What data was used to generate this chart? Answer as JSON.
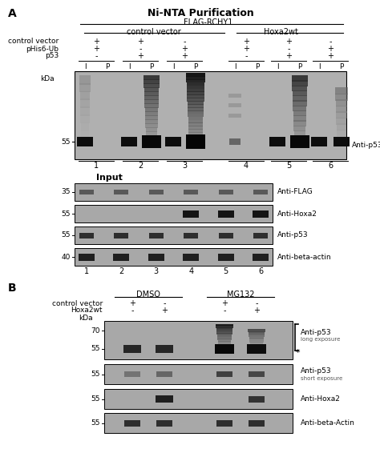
{
  "fig_width": 4.74,
  "fig_height": 5.91,
  "bg_color": "#ffffff",
  "panel_A_label": "A",
  "panel_B_label": "B",
  "panel_A_title": "Ni-NTA Purification",
  "flag_rchy1_label": "FLAG-RCHY1",
  "control_vector_group": "control vector",
  "hoxa2wt_group": "Hoxa2wt",
  "row_labels_A": [
    "control vector",
    "pHis6-Ub",
    "p53"
  ],
  "row_values_A": [
    [
      "+",
      "+",
      "-",
      "+",
      "+",
      "-"
    ],
    [
      "+",
      "-",
      "+",
      "+",
      "-",
      "+"
    ],
    [
      "-",
      "+",
      "+",
      "-",
      "+",
      "+"
    ]
  ],
  "lane_numbers_A": [
    "1",
    "2",
    "3",
    "4",
    "5",
    "6"
  ],
  "anti_p53_label": "Anti-p53",
  "kda_A": "55",
  "input_title": "Input",
  "input_row_labels": [
    "Anti-FLAG",
    "Anti-Hoxa2",
    "Anti-p53",
    "Anti-beta-actin"
  ],
  "input_kda_labels": [
    "35",
    "55",
    "55",
    "40"
  ],
  "lane_numbers_input": [
    "1",
    "2",
    "3",
    "4",
    "5",
    "6"
  ],
  "dmso_label": "DMSO",
  "mg132_label": "MG132",
  "row_labels_B": [
    "control vector",
    "Hoxa2wt"
  ],
  "row_values_B": [
    [
      "+",
      "-",
      "+",
      "-"
    ],
    [
      "-",
      "+",
      "-",
      "+"
    ]
  ],
  "blot_labels_B": [
    "Anti-p53",
    "long exposure",
    "Anti-p53",
    "short exposure",
    "Anti-Hoxa2",
    "Anti-beta-Actin"
  ],
  "kda_labels_B_0": [
    "70",
    "55"
  ],
  "kda_labels_B_1": [
    "55"
  ],
  "kda_labels_B_2": [
    "55"
  ],
  "kda_labels_B_3": [
    "55"
  ]
}
